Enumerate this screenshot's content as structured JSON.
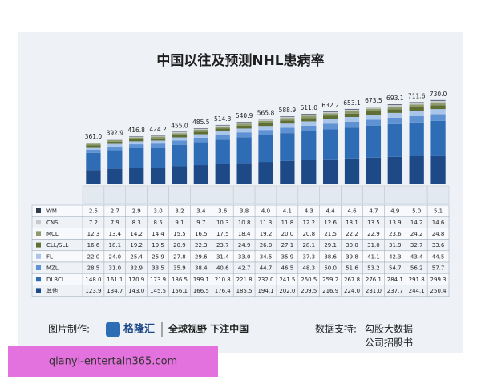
{
  "chart_data": {
    "type": "stacked_bar",
    "title": "中国以往及预测NHL患病率",
    "categories": [
      null,
      null,
      null,
      null,
      null,
      null,
      null,
      null,
      null,
      null,
      null,
      null,
      null,
      null,
      null,
      null,
      null
    ],
    "totals": [
      361.0,
      392.9,
      416.8,
      424.2,
      455.0,
      485.5,
      514.3,
      540.9,
      565.8,
      588.9,
      611.0,
      632.2,
      653.1,
      673.5,
      693.1,
      711.6,
      730.0
    ],
    "series": [
      {
        "name": "WM",
        "color": "#2c3b4d",
        "values": [
          2.5,
          2.7,
          2.9,
          3.0,
          3.2,
          3.4,
          3.6,
          3.8,
          4.0,
          4.1,
          4.3,
          4.4,
          4.6,
          4.7,
          4.9,
          5.0,
          5.1
        ]
      },
      {
        "name": "CNSL",
        "color": "#c6cacf",
        "values": [
          7.2,
          7.9,
          8.3,
          8.5,
          9.1,
          9.7,
          10.3,
          10.8,
          11.3,
          11.8,
          12.2,
          12.6,
          13.1,
          13.5,
          13.9,
          14.2,
          14.6
        ]
      },
      {
        "name": "MCL",
        "color": "#8d9a6c",
        "values": [
          12.3,
          13.4,
          14.2,
          14.4,
          15.5,
          16.5,
          17.5,
          18.4,
          19.2,
          20.0,
          20.8,
          21.5,
          22.2,
          22.9,
          23.6,
          24.2,
          24.8
        ]
      },
      {
        "name": "CLL/SLL",
        "color": "#5f6e33",
        "values": [
          16.6,
          18.1,
          19.2,
          19.5,
          20.9,
          22.3,
          23.7,
          24.9,
          26.0,
          27.1,
          28.1,
          29.1,
          30.0,
          31.0,
          31.9,
          32.7,
          33.6
        ]
      },
      {
        "name": "FL",
        "color": "#a9c6ea",
        "values": [
          22.0,
          24.0,
          25.4,
          25.9,
          27.8,
          29.6,
          31.4,
          33.0,
          34.5,
          35.9,
          37.3,
          38.6,
          39.8,
          41.1,
          42.3,
          43.4,
          44.5
        ]
      },
      {
        "name": "MZL",
        "color": "#5e92d2",
        "values": [
          28.5,
          31.0,
          32.9,
          33.5,
          35.9,
          38.4,
          40.6,
          42.7,
          44.7,
          46.5,
          48.3,
          50.0,
          51.6,
          53.2,
          54.7,
          56.2,
          57.7
        ]
      },
      {
        "name": "DLBCL",
        "color": "#2f6cb6",
        "values": [
          148.0,
          161.1,
          170.9,
          173.9,
          186.5,
          199.1,
          210.8,
          221.8,
          232.0,
          241.5,
          250.5,
          259.2,
          267.8,
          276.1,
          284.1,
          291.8,
          299.3
        ]
      },
      {
        "name": "其他",
        "color": "#1d4a86",
        "values": [
          123.9,
          134.7,
          143.0,
          145.5,
          156.1,
          166.5,
          176.4,
          185.5,
          194.1,
          202.0,
          209.5,
          216.9,
          224.0,
          231.0,
          237.7,
          244.1,
          250.4
        ]
      }
    ],
    "footer": {
      "made_by_label": "图片制作:",
      "brand": "格隆汇",
      "slogan": "全球视野 下注中国",
      "source_label": "数据支持:",
      "source_1": "勾股大数据",
      "source_2": "公司招股书"
    },
    "watermark": "qianyi-entertain365.com"
  }
}
